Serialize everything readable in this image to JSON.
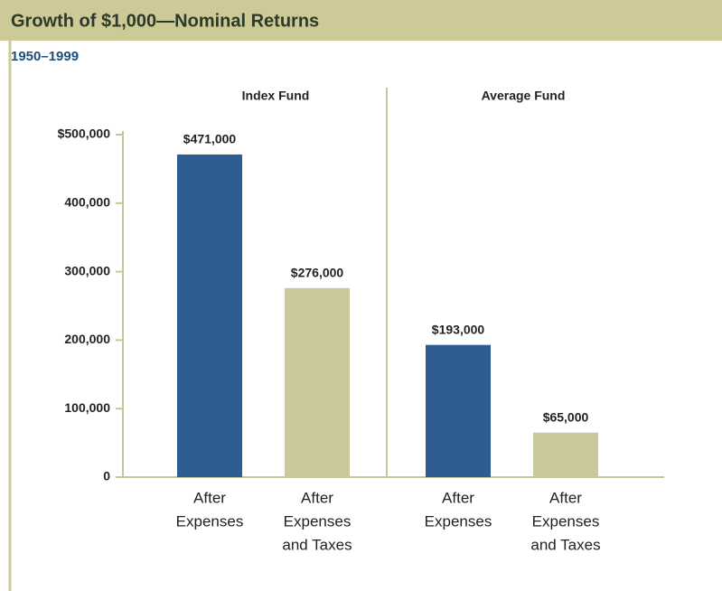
{
  "chart_data": {
    "type": "bar",
    "title": "Growth of $1,000—Nominal Returns",
    "subtitle": "1950–1999",
    "groups": [
      "Index Fund",
      "Average Fund"
    ],
    "categories": [
      [
        "After",
        "Expenses"
      ],
      [
        "After",
        "Expenses",
        "and Taxes"
      ],
      [
        "After",
        "Expenses"
      ],
      [
        "After",
        "Expenses",
        "and Taxes"
      ]
    ],
    "values": [
      471000,
      276000,
      193000,
      65000
    ],
    "value_labels": [
      "$471,000",
      "$276,000",
      "$193,000",
      "$65,000"
    ],
    "colors": [
      "#2f5d8f",
      "#cbc99b",
      "#2f5d8f",
      "#cbc99b"
    ],
    "ylim": [
      0,
      500000
    ],
    "yticks": [
      0,
      {
        "value": 100000,
        "label": "100,000"
      },
      {
        "value": 200000,
        "label": "200,000"
      },
      {
        "value": 300000,
        "label": "300,000"
      },
      {
        "value": 400000,
        "label": "400,000"
      },
      {
        "value": 500000,
        "label": "$500,000"
      }
    ],
    "grid": false
  }
}
